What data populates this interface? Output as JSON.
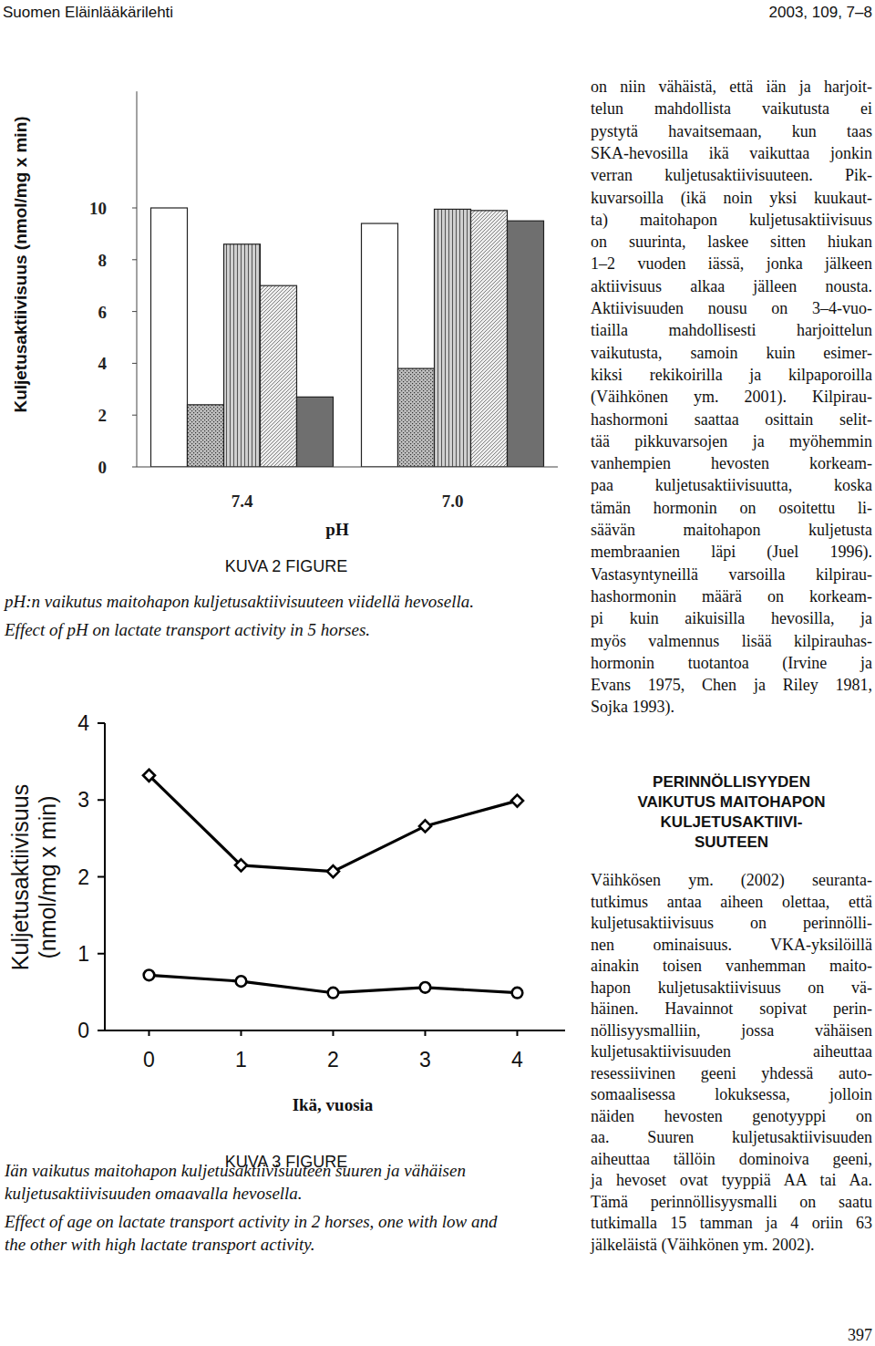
{
  "header": {
    "journal": "Suomen Eläinlääkärilehti",
    "issue": "2003, 109, 7–8"
  },
  "chart_data": [
    {
      "type": "bar",
      "x_label": "pH",
      "y_label": "Kuljetusaktiivisuus (nmol/mg x min)",
      "categories": [
        "7.4",
        "7.0"
      ],
      "series": [
        {
          "color": "#ffffff",
          "values": [
            10.0,
            9.4
          ]
        },
        {
          "color": "#bdbdbd",
          "values": [
            2.4,
            3.8
          ]
        },
        {
          "color": "#d0d0d0",
          "values": [
            8.6,
            9.95
          ]
        },
        {
          "color": "#eeeeee",
          "values": [
            7.0,
            9.9
          ]
        },
        {
          "color": "#6f6f6f",
          "values": [
            2.7,
            9.5
          ]
        }
      ],
      "ylim": [
        0,
        14.5
      ],
      "yticks": [
        0,
        2,
        4,
        6,
        8,
        10
      ]
    },
    {
      "type": "line",
      "x_label": "Ikä, vuosia",
      "y_label": [
        "Kuljetusaktiivisuus",
        "(nmol/mg x min)"
      ],
      "x": [
        0,
        1,
        2,
        3,
        4
      ],
      "series": [
        {
          "color": "#000000",
          "marker": "diamond",
          "values": [
            3.32,
            2.15,
            2.07,
            2.66,
            2.99
          ]
        },
        {
          "color": "#000000",
          "marker": "circle",
          "values": [
            0.72,
            0.64,
            0.49,
            0.56,
            0.49
          ]
        }
      ],
      "xlim": [
        -0.48,
        4.52
      ],
      "ylim": [
        0,
        4
      ],
      "xticks": [
        0,
        1,
        2,
        3,
        4
      ],
      "yticks": [
        0,
        1,
        2,
        3,
        4
      ]
    }
  ],
  "figures": [
    {
      "label": "KUVA 2 FIGURE",
      "caption_fi": [
        "pH:n vaikutus maitohapon kuljetusaktiivisuuteen viidellä hevosella."
      ],
      "caption_en": [
        "Effect of pH on lactate transport activity in 5 horses."
      ]
    },
    {
      "label": "KUVA 3 FIGURE",
      "caption_fi": [
        "Iän vaikutus maitohapon kuljetusaktiivisuuteen suuren ja vähäisen",
        "kuljetusaktiivisuuden omaavalla hevosella."
      ],
      "caption_en": [
        "Effect of age on lactate transport activity in 2 horses, one with low and",
        "the other with high lactate transport activity."
      ]
    }
  ],
  "body": {
    "column_text": [
      "on niin vähäistä, että iän ja harjoit-",
      "telun mahdollista vaikutusta ei",
      "pystytä havaitsemaan, kun taas",
      "SKA-hevosilla ikä vaikuttaa jonkin",
      "verran kuljetusaktiivisuuteen. Pik-",
      "kuvarsoilla (ikä noin yksi kuukaut-",
      "ta) maitohapon kuljetusaktiivisuus",
      "on suurinta, laskee sitten hiukan",
      "1–2 vuoden iässä, jonka jälkeen",
      "aktiivisuus alkaa jälleen nousta.",
      "Aktiivisuuden nousu on 3–4-vuo-",
      "tiailla mahdollisesti harjoittelun",
      "vaikutusta, samoin kuin esimer-",
      "kiksi rekikoirilla ja kilpaporoilla",
      "(Väihkönen ym. 2001). Kilpirau-",
      "hashormoni saattaa osittain selit-",
      "tää pikkuvarsojen ja myöhemmin",
      "vanhempien hevosten korkeam-",
      "paa kuljetusaktiivisuutta, koska",
      "tämän hormonin on osoitettu li-",
      "säävän maitohapon kuljetusta",
      "membraanien läpi (Juel 1996).",
      "Vastasyntyneillä varsoilla kilpirau-",
      "hashormonin määrä on korkeam-",
      "pi kuin aikuisilla hevosilla, ja",
      "myös valmennus lisää kilpirauhas-",
      "hormonin tuotantoa (Irvine ja",
      "Evans 1975, Chen ja Riley 1981,",
      "Sojka 1993)."
    ],
    "section_heading": [
      "PERINNÖLLISYYDEN",
      "VAIKUTUS MAITOHAPON",
      "KULJETUSAKTIIVI-",
      "SUUTEEN"
    ],
    "section_text": [
      "Väihkösen ym. (2002) seuranta-",
      "tutkimus antaa aiheen olettaa, että",
      "kuljetusaktiivisuus on perinnölli-",
      "nen ominaisuus. VKA-yksilöillä",
      "ainakin toisen vanhemman maito-",
      "hapon kuljetusaktiivisuus on vä-",
      "häinen. Havainnot sopivat perin-",
      "nöllisyysmalliin, jossa vähäisen",
      "kuljetusaktiivisuuden aiheuttaa",
      "resessiivinen geeni yhdessä auto-",
      "somaalisessa lokuksessa, jolloin",
      "näiden hevosten genotyyppi on",
      "aa. Suuren kuljetusaktiivisuuden",
      "aiheuttaa tällöin dominoiva geeni,",
      "ja hevoset ovat tyyppiä AA tai Aa.",
      "Tämä perinnöllisyysmalli on saatu",
      "tutkimalla 15 tamman ja 4 oriin 63",
      "jälkeläistä (Väihkönen ym. 2002)."
    ]
  },
  "page_number": "397"
}
